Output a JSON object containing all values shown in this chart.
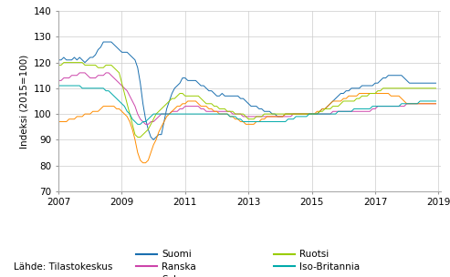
{
  "title": "",
  "ylabel": "Indeksi (2015=100)",
  "source": "Lähde: Tilastokeskus",
  "ylim": [
    70,
    140
  ],
  "yticks": [
    70,
    80,
    90,
    100,
    110,
    120,
    130,
    140
  ],
  "xlim_start": 2007.0,
  "xlim_end": 2019.08,
  "xticks": [
    2007,
    2009,
    2011,
    2013,
    2015,
    2017,
    2019
  ],
  "colors": {
    "Suomi": "#1a6faf",
    "Ranska": "#cc44aa",
    "Saksa": "#ff8c00",
    "Ruotsi": "#99cc00",
    "Iso-Britannia": "#00aaaa"
  },
  "suomi": [
    121,
    121,
    122,
    121,
    121,
    121,
    122,
    121,
    122,
    121,
    120,
    121,
    122,
    122,
    123,
    125,
    126,
    128,
    128,
    128,
    128,
    127,
    126,
    125,
    124,
    124,
    124,
    123,
    122,
    121,
    118,
    112,
    104,
    98,
    94,
    91,
    90,
    91,
    92,
    92,
    97,
    102,
    105,
    108,
    110,
    111,
    112,
    114,
    114,
    113,
    113,
    113,
    113,
    112,
    111,
    111,
    110,
    109,
    109,
    108,
    107,
    107,
    108,
    107,
    107,
    107,
    107,
    107,
    107,
    106,
    106,
    105,
    104,
    103,
    103,
    103,
    102,
    102,
    101,
    101,
    101,
    100,
    100,
    99,
    99,
    99,
    100,
    100,
    100,
    100,
    100,
    100,
    100,
    100,
    100,
    100,
    100,
    100,
    100,
    101,
    102,
    102,
    103,
    104,
    105,
    106,
    107,
    108,
    108,
    109,
    109,
    110,
    110,
    110,
    110,
    111,
    111,
    111,
    111,
    111,
    112,
    112,
    113,
    114,
    114,
    115,
    115,
    115,
    115,
    115,
    115,
    114,
    113,
    112,
    112,
    112,
    112,
    112,
    112,
    112,
    112,
    112,
    112,
    112
  ],
  "ranska": [
    113,
    113,
    114,
    114,
    114,
    115,
    115,
    115,
    116,
    116,
    116,
    115,
    114,
    114,
    114,
    115,
    115,
    115,
    116,
    116,
    115,
    114,
    113,
    112,
    111,
    110,
    109,
    107,
    105,
    103,
    100,
    98,
    97,
    96,
    96,
    97,
    97,
    98,
    99,
    100,
    100,
    100,
    100,
    101,
    101,
    101,
    102,
    102,
    103,
    103,
    103,
    103,
    103,
    103,
    102,
    102,
    101,
    101,
    101,
    101,
    101,
    101,
    101,
    101,
    101,
    101,
    100,
    100,
    100,
    100,
    99,
    99,
    99,
    99,
    99,
    99,
    99,
    99,
    99,
    99,
    99,
    99,
    99,
    99,
    99,
    99,
    99,
    99,
    99,
    100,
    100,
    100,
    100,
    100,
    100,
    100,
    100,
    100,
    100,
    100,
    100,
    100,
    100,
    100,
    101,
    101,
    101,
    101,
    101,
    101,
    101,
    101,
    101,
    101,
    101,
    101,
    101,
    101,
    101,
    102,
    102,
    103,
    103,
    103,
    103,
    103,
    103,
    103,
    103,
    103,
    103,
    103,
    104,
    104,
    104,
    104,
    104,
    104,
    104,
    104,
    104,
    104,
    104,
    104
  ],
  "saksa": [
    97,
    97,
    97,
    97,
    98,
    98,
    98,
    99,
    99,
    99,
    100,
    100,
    100,
    101,
    101,
    101,
    102,
    103,
    103,
    103,
    103,
    103,
    102,
    102,
    101,
    100,
    99,
    97,
    94,
    90,
    85,
    82,
    81,
    81,
    82,
    85,
    88,
    90,
    93,
    95,
    97,
    99,
    100,
    101,
    102,
    103,
    103,
    104,
    104,
    105,
    105,
    105,
    105,
    104,
    103,
    103,
    103,
    102,
    102,
    101,
    101,
    100,
    100,
    100,
    100,
    99,
    99,
    98,
    98,
    97,
    97,
    96,
    96,
    96,
    96,
    97,
    97,
    98,
    98,
    99,
    99,
    99,
    99,
    99,
    99,
    99,
    100,
    100,
    100,
    100,
    100,
    100,
    100,
    100,
    100,
    100,
    100,
    100,
    101,
    101,
    102,
    102,
    103,
    104,
    105,
    105,
    105,
    105,
    106,
    106,
    107,
    107,
    107,
    107,
    108,
    108,
    108,
    108,
    108,
    108,
    108,
    108,
    108,
    108,
    108,
    108,
    107,
    107,
    107,
    107,
    106,
    105,
    104,
    104,
    104,
    104,
    104,
    104,
    104,
    104,
    104,
    104,
    104,
    104
  ],
  "ruotsi": [
    119,
    119,
    120,
    120,
    120,
    120,
    120,
    120,
    120,
    120,
    119,
    119,
    119,
    119,
    119,
    118,
    118,
    118,
    119,
    119,
    119,
    118,
    117,
    116,
    112,
    108,
    104,
    100,
    96,
    92,
    91,
    91,
    92,
    93,
    94,
    96,
    98,
    100,
    101,
    102,
    103,
    104,
    105,
    106,
    106,
    107,
    108,
    108,
    107,
    107,
    107,
    107,
    107,
    107,
    106,
    105,
    104,
    104,
    104,
    103,
    103,
    102,
    102,
    102,
    101,
    101,
    101,
    100,
    100,
    100,
    100,
    99,
    98,
    98,
    98,
    99,
    99,
    99,
    100,
    100,
    100,
    100,
    100,
    100,
    100,
    100,
    100,
    100,
    100,
    100,
    100,
    100,
    100,
    100,
    100,
    100,
    100,
    100,
    100,
    101,
    101,
    102,
    102,
    102,
    103,
    103,
    103,
    104,
    105,
    105,
    105,
    105,
    105,
    106,
    106,
    107,
    107,
    107,
    108,
    108,
    108,
    109,
    109,
    110,
    110,
    110,
    110,
    110,
    110,
    110,
    110,
    110,
    110,
    110,
    110,
    110,
    110,
    110,
    110,
    110,
    110,
    110,
    110,
    110
  ],
  "iso_britannia": [
    111,
    111,
    111,
    111,
    111,
    111,
    111,
    111,
    111,
    110,
    110,
    110,
    110,
    110,
    110,
    110,
    110,
    110,
    109,
    109,
    108,
    107,
    106,
    105,
    104,
    103,
    101,
    100,
    98,
    97,
    96,
    96,
    97,
    97,
    98,
    99,
    100,
    100,
    100,
    100,
    100,
    100,
    100,
    100,
    100,
    100,
    100,
    100,
    100,
    100,
    100,
    100,
    100,
    100,
    100,
    100,
    100,
    100,
    100,
    100,
    100,
    100,
    100,
    100,
    100,
    99,
    99,
    99,
    98,
    98,
    97,
    97,
    97,
    97,
    97,
    97,
    97,
    97,
    97,
    97,
    97,
    97,
    97,
    97,
    97,
    97,
    97,
    98,
    98,
    98,
    99,
    99,
    99,
    99,
    99,
    100,
    100,
    100,
    100,
    100,
    100,
    100,
    100,
    100,
    100,
    100,
    101,
    101,
    101,
    101,
    101,
    101,
    102,
    102,
    102,
    102,
    102,
    102,
    102,
    103,
    103,
    103,
    103,
    103,
    103,
    103,
    103,
    103,
    103,
    103,
    104,
    104,
    104,
    104,
    104,
    104,
    104,
    105,
    105,
    105,
    105,
    105,
    105,
    105
  ]
}
